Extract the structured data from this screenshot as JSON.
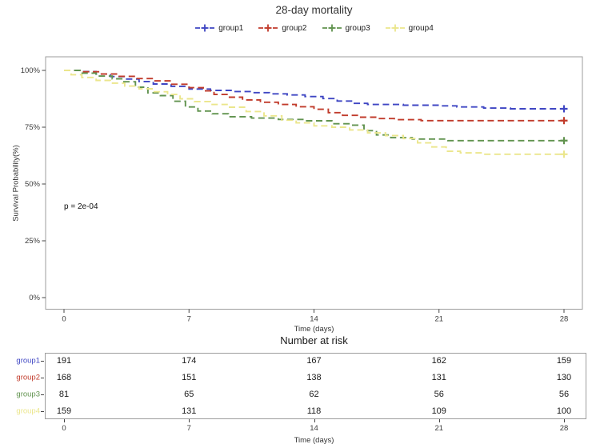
{
  "chart_data": {
    "type": "line",
    "subtype": "kaplan-meier-step",
    "title": "28-day mortality",
    "xlabel": "Time (days)",
    "ylabel": "Survival Probability(%)",
    "annotation": "p = 2e-04",
    "xlim": [
      0,
      28
    ],
    "ylim": [
      0,
      100
    ],
    "grid": false,
    "legend_position": "top",
    "line_style": "dashed",
    "frame_color": "#9e9e9e",
    "xticks": [
      {
        "value": 0,
        "label": "0"
      },
      {
        "value": 7,
        "label": "7"
      },
      {
        "value": 14,
        "label": "14"
      },
      {
        "value": 21,
        "label": "21"
      },
      {
        "value": 28,
        "label": "28"
      }
    ],
    "yticks": [
      {
        "value": 0,
        "label": "0%"
      },
      {
        "value": 25,
        "label": "25%"
      },
      {
        "value": 50,
        "label": "50%"
      },
      {
        "value": 75,
        "label": "75%"
      },
      {
        "value": 100,
        "label": "100%"
      }
    ],
    "series": [
      {
        "name": "group1",
        "color": "#3F46C3",
        "points": [
          [
            0,
            100
          ],
          [
            1,
            99.5
          ],
          [
            1.8,
            98.4
          ],
          [
            2.6,
            97.3
          ],
          [
            3.4,
            96.2
          ],
          [
            4.2,
            95.1
          ],
          [
            5,
            94
          ],
          [
            6,
            93
          ],
          [
            7,
            91.8
          ],
          [
            8.2,
            91.2
          ],
          [
            9.5,
            90.7
          ],
          [
            10.5,
            90.2
          ],
          [
            11.5,
            89.7
          ],
          [
            12.5,
            89.2
          ],
          [
            13.5,
            88.5
          ],
          [
            14.5,
            87.6
          ],
          [
            15.3,
            86.5
          ],
          [
            16.2,
            85.5
          ],
          [
            17,
            85
          ],
          [
            19,
            84.7
          ],
          [
            21,
            84.4
          ],
          [
            22,
            83.9
          ],
          [
            23.5,
            83.4
          ],
          [
            25,
            83.1
          ],
          [
            28,
            83.1
          ]
        ]
      },
      {
        "name": "group2",
        "color": "#C13B2B",
        "points": [
          [
            0,
            100
          ],
          [
            1,
            99.4
          ],
          [
            2,
            98.4
          ],
          [
            3,
            97.4
          ],
          [
            4,
            96.4
          ],
          [
            5,
            95.4
          ],
          [
            6,
            93.9
          ],
          [
            7,
            92.4
          ],
          [
            7.8,
            91
          ],
          [
            8.4,
            89.4
          ],
          [
            9.2,
            88.2
          ],
          [
            10,
            87
          ],
          [
            11,
            86
          ],
          [
            12,
            85
          ],
          [
            13,
            84
          ],
          [
            14,
            82.9
          ],
          [
            14.8,
            81.4
          ],
          [
            15.6,
            80.2
          ],
          [
            16.5,
            79.4
          ],
          [
            17.5,
            78.8
          ],
          [
            18.5,
            78.3
          ],
          [
            20,
            77.9
          ],
          [
            28,
            77.9
          ]
        ]
      },
      {
        "name": "group3",
        "color": "#61934F",
        "points": [
          [
            0,
            100
          ],
          [
            0.9,
            98.8
          ],
          [
            1.8,
            97.5
          ],
          [
            2.7,
            96.3
          ],
          [
            3.3,
            95
          ],
          [
            4,
            92.6
          ],
          [
            4.7,
            90.1
          ],
          [
            5.4,
            88.9
          ],
          [
            6.1,
            86.4
          ],
          [
            6.8,
            83.9
          ],
          [
            7.5,
            82.1
          ],
          [
            8.3,
            80.9
          ],
          [
            9.2,
            79.6
          ],
          [
            10.5,
            79
          ],
          [
            12,
            78.4
          ],
          [
            13.5,
            77.8
          ],
          [
            15,
            76.5
          ],
          [
            16,
            75.9
          ],
          [
            16.8,
            73.5
          ],
          [
            17.5,
            71.6
          ],
          [
            18.3,
            70.4
          ],
          [
            19.5,
            69.8
          ],
          [
            21.5,
            69.1
          ],
          [
            28,
            69.1
          ]
        ]
      },
      {
        "name": "group4",
        "color": "#EBE68C",
        "points": [
          [
            0,
            100
          ],
          [
            0.4,
            98.1
          ],
          [
            1,
            96.9
          ],
          [
            1.8,
            95.6
          ],
          [
            2.6,
            94.4
          ],
          [
            3.4,
            93.1
          ],
          [
            4.2,
            91.9
          ],
          [
            5,
            90.6
          ],
          [
            5.8,
            89.4
          ],
          [
            6.5,
            87.5
          ],
          [
            7.3,
            86.3
          ],
          [
            8.2,
            85
          ],
          [
            9.2,
            83.8
          ],
          [
            10.2,
            81.9
          ],
          [
            11.2,
            80
          ],
          [
            12.2,
            78.1
          ],
          [
            13,
            76.9
          ],
          [
            14,
            75.6
          ],
          [
            15,
            75
          ],
          [
            16,
            73.8
          ],
          [
            17,
            72.5
          ],
          [
            18,
            71.3
          ],
          [
            19,
            70
          ],
          [
            19.8,
            68.1
          ],
          [
            20.6,
            66.3
          ],
          [
            21.4,
            64.4
          ],
          [
            22.2,
            63.7
          ],
          [
            23.5,
            63.1
          ],
          [
            28,
            63.1
          ]
        ]
      }
    ]
  },
  "risk_table": {
    "title": "Number at risk",
    "xlabel": "Time (days)",
    "timepoints": [
      {
        "value": 0,
        "label": "0"
      },
      {
        "value": 7,
        "label": "7"
      },
      {
        "value": 14,
        "label": "14"
      },
      {
        "value": 21,
        "label": "21"
      },
      {
        "value": 28,
        "label": "28"
      }
    ],
    "rows": [
      {
        "label": "group1",
        "color": "#3F46C3",
        "values": [
          191,
          174,
          167,
          162,
          159
        ]
      },
      {
        "label": "group2",
        "color": "#C13B2B",
        "values": [
          168,
          151,
          138,
          131,
          130
        ]
      },
      {
        "label": "group3",
        "color": "#61934F",
        "values": [
          81,
          65,
          62,
          56,
          56
        ]
      },
      {
        "label": "group4",
        "color": "#EBE68C",
        "values": [
          159,
          131,
          118,
          109,
          100
        ]
      }
    ]
  }
}
